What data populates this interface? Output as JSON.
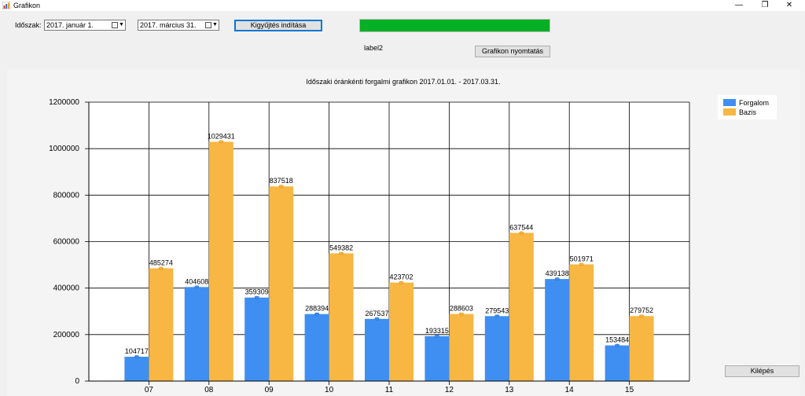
{
  "window": {
    "title": "Grafikon",
    "minimize": "—",
    "restore": "❐",
    "close": "✕"
  },
  "toolbar": {
    "period_label": "Időszak:",
    "date_from": "2017.    január     1.",
    "date_to": "2017.   március   31.",
    "start_button": "Kigyűjtés indítása",
    "status_label": "label2",
    "print_button": "Grafikon nyomtatás",
    "progress_percent": 100
  },
  "footer": {
    "exit_button": "Kilépés"
  },
  "colors": {
    "forgalom": "#3f8ff2",
    "bazis": "#f8b642",
    "progress": "#06b025"
  },
  "chart_data": {
    "type": "bar",
    "title": "Időszaki óránkénti forgalmi grafikon 2017.01.01. - 2017.03.31.",
    "categories": [
      "07",
      "08",
      "09",
      "10",
      "11",
      "12",
      "13",
      "14",
      "15"
    ],
    "series": [
      {
        "name": "Forgalom",
        "values": [
          104717,
          404608,
          359309,
          288394,
          267537,
          193315,
          279543,
          439138,
          153484
        ]
      },
      {
        "name": "Bazis",
        "values": [
          485274,
          1029431,
          837518,
          549382,
          423702,
          288603,
          637544,
          501971,
          279752
        ]
      }
    ],
    "y_ticks": [
      "0",
      "200000",
      "400000",
      "600000",
      "800000",
      "1000000",
      "1200000"
    ],
    "ylim": [
      0,
      1200000
    ],
    "legend_position": "top-right",
    "grid": true
  }
}
